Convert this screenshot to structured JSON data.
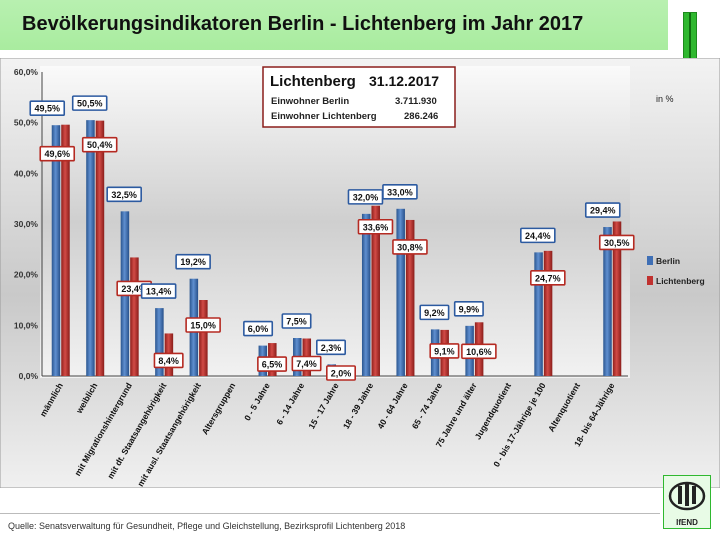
{
  "title": "Bevölkerungsindikatoren Berlin - Lichtenberg im Jahr 2017",
  "source": "Quelle: Senatsverwaltung für Gesundheit, Pflege und Gleichstellung, Bezirksprofil Lichtenberg 2018",
  "logo_text": "IfEND",
  "colors": {
    "berlin": "#3f6fb5",
    "lichtenberg": "#c0312f",
    "label_border_berlin": "#2c5aa0",
    "label_border_lichtenberg": "#b52a22",
    "title_bg": "#a9ec9f",
    "accent_green": "#2fb82f"
  },
  "info_box": {
    "district": "Lichtenberg",
    "date": "31.12.2017",
    "row1_label": "Einwohner Berlin",
    "row1_value": "3.711.930",
    "row2_label": "Einwohner Lichtenberg",
    "row2_value": "286.246"
  },
  "chart_data": {
    "type": "bar",
    "unit_label": "in %",
    "ylim": [
      0,
      60
    ],
    "yticks": [
      "0,0%",
      "10,0%",
      "20,0%",
      "30,0%",
      "40,0%",
      "50,0%",
      "60,0%"
    ],
    "grid": false,
    "legend_position": "right",
    "categories": [
      "männlich",
      "weiblich",
      "mit Migrationshintergrund",
      "mit dt. Staatsangehörigkeit",
      "mit ausl. Staatsangehörigkeit",
      "Altersgruppen",
      "0 - 5 Jahre",
      "6 - 14 Jahre",
      "15 - 17 Jahre",
      "18 - 39 Jahre",
      "40 - 64 Jahre",
      "65 - 74 Jahre",
      "75 Jahre und älter",
      "Jugendquotient",
      "0 - bis 17-Jährige je 100",
      "Altenquotient",
      "18- bis 64-Jährige"
    ],
    "series": [
      {
        "name": "Berlin",
        "values": [
          49.5,
          50.5,
          32.5,
          13.4,
          19.2,
          null,
          6.0,
          7.5,
          2.3,
          32.0,
          33.0,
          9.2,
          9.9,
          null,
          24.4,
          null,
          29.4
        ],
        "labels": [
          "49,5%",
          "50,5%",
          "32,5%",
          "13,4%",
          "19,2%",
          "",
          "6,0%",
          "7,5%",
          "2,3%",
          "32,0%",
          "33,0%",
          "9,2%",
          "9,9%",
          "",
          "24,4%",
          "",
          "29,4%"
        ]
      },
      {
        "name": "Lichtenberg",
        "values": [
          49.6,
          50.4,
          23.4,
          8.4,
          15.0,
          null,
          6.5,
          7.4,
          2.0,
          33.6,
          30.8,
          9.1,
          10.6,
          null,
          24.7,
          null,
          30.5
        ],
        "labels": [
          "49,6%",
          "50,4%",
          "23,4%",
          "8,4%",
          "15,0%",
          "",
          "6,5%",
          "7,4%",
          "2,0%",
          "33,6%",
          "30,8%",
          "9,1%",
          "10,6%",
          "",
          "24,7%",
          "",
          "30,5%"
        ]
      }
    ]
  }
}
